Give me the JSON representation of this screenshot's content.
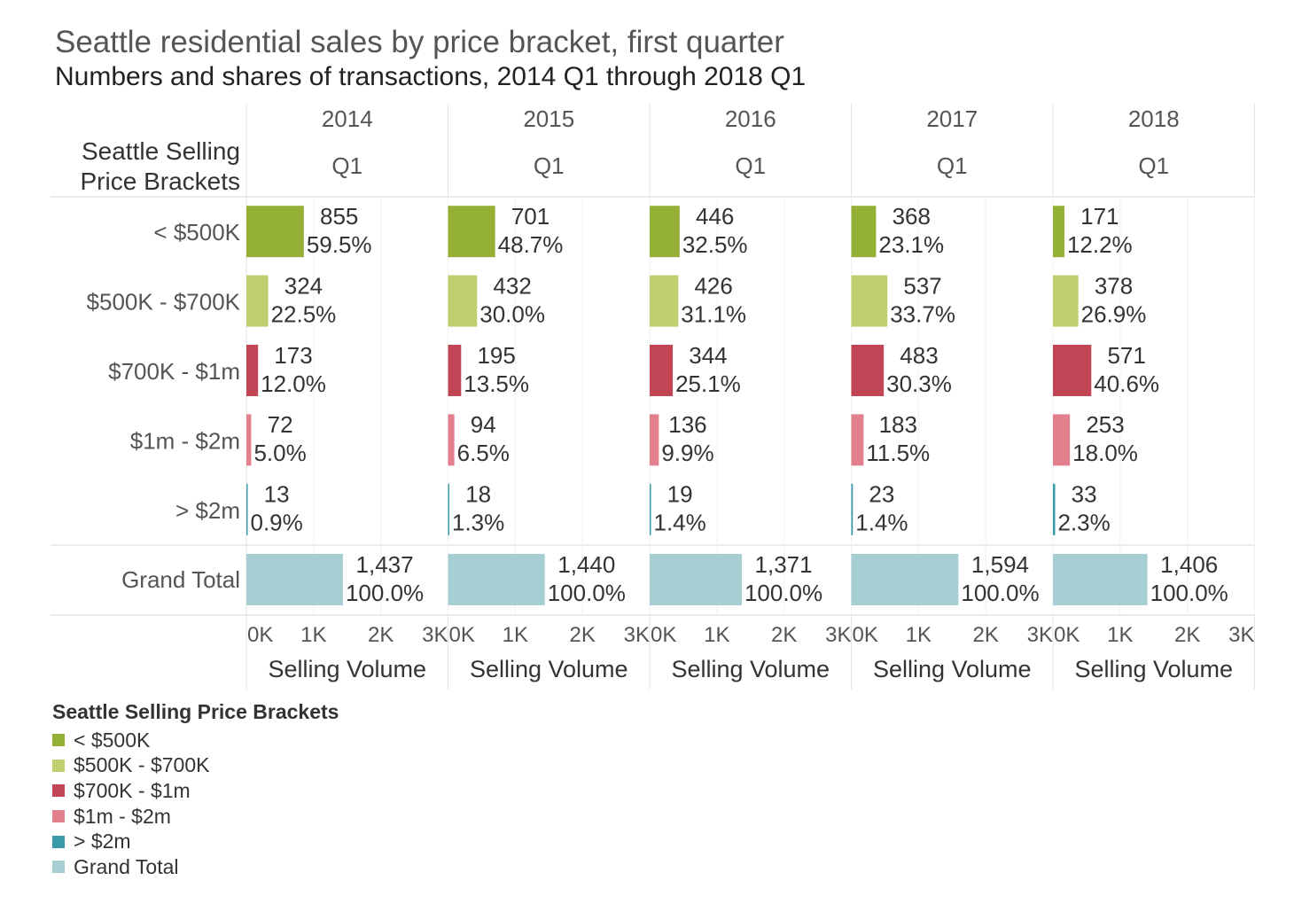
{
  "title": "Seattle residential sales by price bracket, first quarter",
  "subtitle": "Numbers and shares of transactions, 2014 Q1 through 2018 Q1",
  "chart_data": {
    "type": "bar",
    "orientation": "horizontal",
    "row_header": [
      "Seattle Selling",
      "Price Brackets"
    ],
    "columns": [
      {
        "year": "2014",
        "quarter": "Q1"
      },
      {
        "year": "2015",
        "quarter": "Q1"
      },
      {
        "year": "2016",
        "quarter": "Q1"
      },
      {
        "year": "2017",
        "quarter": "Q1"
      },
      {
        "year": "2018",
        "quarter": "Q1"
      }
    ],
    "rows": [
      {
        "label": "< $500K",
        "color": "#94b035",
        "values": [
          855,
          701,
          446,
          368,
          171
        ],
        "labels": [
          "855",
          "701",
          "446",
          "368",
          "171"
        ],
        "shares": [
          "59.5%",
          "48.7%",
          "32.5%",
          "23.1%",
          "12.2%"
        ]
      },
      {
        "label": "$500K - $700K",
        "color": "#bfcf6f",
        "values": [
          324,
          432,
          426,
          537,
          378
        ],
        "labels": [
          "324",
          "432",
          "426",
          "537",
          "378"
        ],
        "shares": [
          "22.5%",
          "30.0%",
          "31.1%",
          "33.7%",
          "26.9%"
        ]
      },
      {
        "label": "$700K - $1m",
        "color": "#c24556",
        "values": [
          173,
          195,
          344,
          483,
          571
        ],
        "labels": [
          "173",
          "195",
          "344",
          "483",
          "571"
        ],
        "shares": [
          "12.0%",
          "13.5%",
          "25.1%",
          "30.3%",
          "40.6%"
        ]
      },
      {
        "label": "$1m - $2m",
        "color": "#e2808e",
        "values": [
          72,
          94,
          136,
          183,
          253
        ],
        "labels": [
          "72",
          "94",
          "136",
          "183",
          "253"
        ],
        "shares": [
          "5.0%",
          "6.5%",
          "9.9%",
          "11.5%",
          "18.0%"
        ]
      },
      {
        "label": "> $2m",
        "color": "#3a9aa8",
        "values": [
          13,
          18,
          19,
          23,
          33
        ],
        "labels": [
          "13",
          "18",
          "19",
          "23",
          "33"
        ],
        "shares": [
          "0.9%",
          "1.3%",
          "1.4%",
          "1.4%",
          "2.3%"
        ]
      }
    ],
    "total_row": {
      "label": "Grand Total",
      "color": "#a7cfd3",
      "values": [
        1437,
        1440,
        1371,
        1594,
        1406
      ],
      "labels": [
        "1,437",
        "1,440",
        "1,371",
        "1,594",
        "1,406"
      ],
      "shares": [
        "100.0%",
        "100.0%",
        "100.0%",
        "100.0%",
        "100.0%"
      ]
    },
    "x_ticks": [
      0,
      1000,
      2000,
      3000
    ],
    "x_tick_labels": [
      "0K",
      "1K",
      "2K",
      "3K"
    ],
    "xlim": [
      0,
      3000
    ],
    "xlabel": "Selling Volume",
    "legend": {
      "title": "Seattle Selling Price Brackets",
      "items": [
        {
          "label": "< $500K",
          "color": "#94b035"
        },
        {
          "label": "$500K - $700K",
          "color": "#bfcf6f"
        },
        {
          "label": "$700K - $1m",
          "color": "#c24556"
        },
        {
          "label": "$1m - $2m",
          "color": "#e2808e"
        },
        {
          "label": "> $2m",
          "color": "#3a9aa8"
        },
        {
          "label": "Grand Total",
          "color": "#a7cfd3"
        }
      ]
    }
  }
}
